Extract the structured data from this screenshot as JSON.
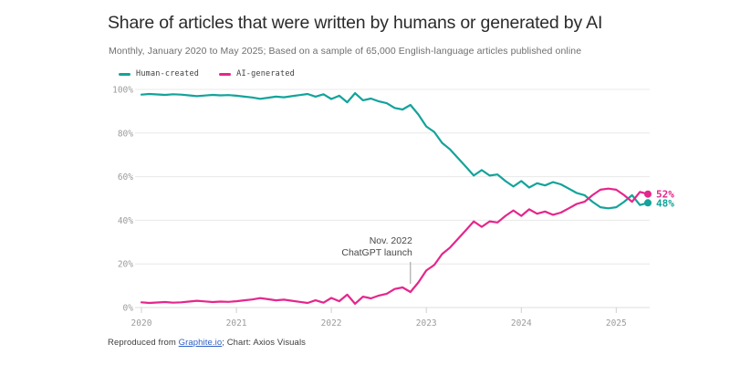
{
  "header": {
    "title": "Share of articles that were written by humans or generated by AI",
    "subtitle": "Monthly, January 2020 to May 2025; Based on a sample of 65,000 English-language articles published online"
  },
  "legend": [
    {
      "label": "Human-created",
      "color": "#13a39a"
    },
    {
      "label": "AI-generated",
      "color": "#e5268c"
    }
  ],
  "chart_data": {
    "type": "line",
    "title": "Share of articles that were written by humans or generated by AI",
    "subtitle": "Monthly, January 2020 to May 2025; Based on a sample of 65,000 English-language articles published online",
    "x_unit": "month",
    "x_start": "2020-01",
    "x_end": "2025-05",
    "xticks": [
      "2020",
      "2021",
      "2022",
      "2023",
      "2024",
      "2025"
    ],
    "yticks": [
      "0%",
      "20%",
      "40%",
      "60%",
      "80%",
      "100%"
    ],
    "ytick_values": [
      0,
      20,
      40,
      60,
      80,
      100
    ],
    "ylim": [
      0,
      100
    ],
    "grid": "horizontal",
    "legend_position": "top-left",
    "annotation": {
      "line1": "Nov. 2022",
      "line2": "ChatGPT launch",
      "x_month_index": 34
    },
    "series": [
      {
        "name": "Human-created",
        "color": "#13a39a",
        "end_label": "48%",
        "values": [
          97.6,
          97.9,
          97.7,
          97.5,
          97.8,
          97.6,
          97.3,
          96.9,
          97.2,
          97.5,
          97.3,
          97.4,
          97.1,
          96.7,
          96.3,
          95.7,
          96.2,
          96.7,
          96.4,
          96.9,
          97.4,
          97.9,
          96.7,
          97.8,
          95.6,
          97.1,
          94.1,
          98.3,
          95.0,
          95.8,
          94.5,
          93.7,
          91.5,
          90.8,
          92.9,
          88.5,
          83.0,
          80.5,
          75.5,
          72.5,
          68.5,
          64.5,
          60.5,
          63.0,
          60.5,
          61.0,
          58.0,
          55.5,
          58.0,
          55.0,
          57.0,
          56.0,
          57.5,
          56.5,
          54.5,
          52.5,
          51.5,
          48.5,
          46.0,
          45.5,
          46.0,
          48.5,
          51.5,
          47.0,
          48.0
        ]
      },
      {
        "name": "AI-generated",
        "color": "#e5268c",
        "end_label": "52%",
        "values": [
          2.4,
          2.1,
          2.3,
          2.5,
          2.2,
          2.4,
          2.7,
          3.1,
          2.8,
          2.5,
          2.7,
          2.6,
          2.9,
          3.3,
          3.7,
          4.3,
          3.8,
          3.3,
          3.6,
          3.1,
          2.6,
          2.1,
          3.3,
          2.2,
          4.4,
          2.9,
          5.9,
          1.7,
          5.0,
          4.2,
          5.5,
          6.3,
          8.5,
          9.2,
          7.1,
          11.5,
          17.0,
          19.5,
          24.5,
          27.5,
          31.5,
          35.5,
          39.5,
          37.0,
          39.5,
          39.0,
          42.0,
          44.5,
          42.0,
          45.0,
          43.0,
          44.0,
          42.5,
          43.5,
          45.5,
          47.5,
          48.5,
          51.5,
          54.0,
          54.5,
          54.0,
          51.5,
          48.5,
          53.0,
          52.0
        ]
      }
    ]
  },
  "footer": {
    "prefix": "Reproduced from ",
    "link": "Graphite.io",
    "suffix": "; Chart: Axios Visuals"
  }
}
